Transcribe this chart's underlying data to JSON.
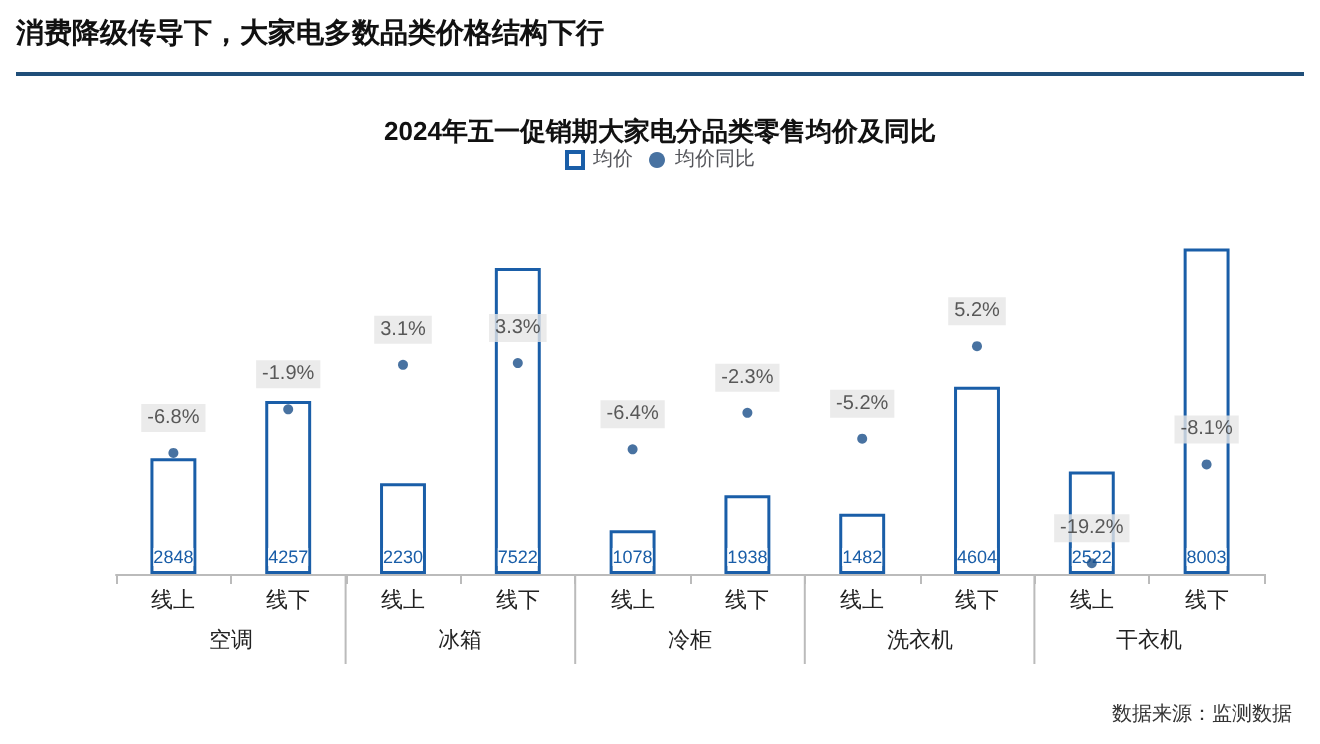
{
  "chart_data": {
    "type": "bar",
    "title": "2024年五一促销期大家电分品类零售均价及同比",
    "subtitle": "消费降级传导下，大家电多数品类价格结构下行",
    "categories": [
      "线上",
      "线下",
      "线上",
      "线下",
      "线上",
      "线下",
      "线上",
      "线下",
      "线上",
      "线下"
    ],
    "series": [
      {
        "name": "均价",
        "color": "#1a5ea8",
        "values": [
          2848,
          4257,
          2230,
          7522,
          1078,
          1938,
          1482,
          4604,
          2522,
          8003
        ]
      },
      {
        "name": "均价同比",
        "type": "scatter",
        "axis": "y2",
        "color": "#1a4f8a",
        "values": [
          -6.8,
          -1.9,
          3.1,
          3.3,
          -6.4,
          -2.3,
          -5.2,
          5.2,
          -19.2,
          -8.1
        ],
        "value_labels": [
          "-6.8%",
          "-1.9%",
          "3.1%",
          "3.3%",
          "-6.4%",
          "-2.3%",
          "-5.2%",
          "5.2%",
          "-19.2%",
          "-8.1%"
        ]
      }
    ],
    "data_labels": true,
    "legend": "top",
    "marker": "circle",
    "grid": false,
    "tick_labels": "x",
    "annotations": [
      "空调",
      "冰箱",
      "冷柜",
      "洗衣机",
      "干衣机",
      "数据来源：监测数据"
    ]
  }
}
